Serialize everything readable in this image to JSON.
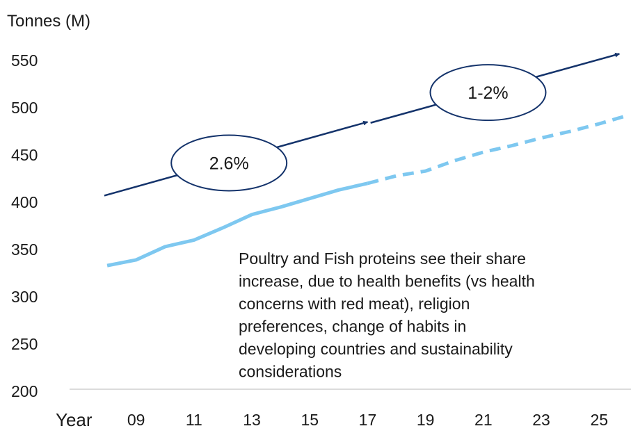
{
  "chart_data": {
    "type": "line",
    "y_label": "Tonnes (M)",
    "x_label": "Year",
    "x": [
      2008,
      2009,
      2010,
      2011,
      2012,
      2013,
      2014,
      2015,
      2016,
      2017,
      2018,
      2019,
      2020,
      2021,
      2022,
      2023,
      2024,
      2025,
      2026
    ],
    "series": [
      {
        "color": "#7ec8f0",
        "style": "solid",
        "values": [
          333,
          339,
          353,
          360,
          373,
          387,
          395,
          404,
          413,
          420,
          null,
          null,
          null,
          null,
          null,
          null,
          null,
          null,
          null
        ]
      },
      {
        "color": "#7ec8f0",
        "style": "dashed",
        "values": [
          null,
          null,
          null,
          null,
          null,
          null,
          null,
          null,
          null,
          420,
          428,
          433,
          444,
          453,
          460,
          468,
          475,
          483,
          492
        ]
      }
    ],
    "trends": [
      {
        "label": "2.6%",
        "x": [
          2007.9,
          2017.0
        ],
        "values": [
          407,
          485
        ]
      },
      {
        "label": "1-2%",
        "x": [
          2017.1,
          2025.7
        ],
        "values": [
          484,
          557
        ]
      }
    ],
    "trend_color": "#14336b",
    "annotation": [
      "Poultry and Fish proteins see their share",
      "increase, due to health benefits (vs health",
      "concerns with red meat), religion",
      "preferences, change of habits in",
      "developing countries and sustainability",
      "considerations"
    ],
    "xlim": [
      2006.7,
      2026.1
    ],
    "ylim": [
      200,
      550
    ],
    "yticks": [
      200,
      250,
      300,
      350,
      400,
      450,
      500,
      550
    ],
    "xticks": [
      {
        "value": 2009,
        "label": "09"
      },
      {
        "value": 2011,
        "label": "11"
      },
      {
        "value": 2013,
        "label": "13"
      },
      {
        "value": 2015,
        "label": "15"
      },
      {
        "value": 2017,
        "label": "17"
      },
      {
        "value": 2019,
        "label": "19"
      },
      {
        "value": 2021,
        "label": "21"
      },
      {
        "value": 2023,
        "label": "23"
      },
      {
        "value": 2025,
        "label": "25"
      }
    ],
    "grid": false
  }
}
